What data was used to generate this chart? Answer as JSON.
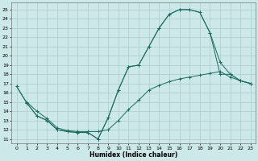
{
  "xlabel": "Humidex (Indice chaleur)",
  "bg_color": "#cce8e8",
  "grid_color": "#aacccc",
  "line_color": "#1a6b5e",
  "xlim": [
    -0.5,
    23.5
  ],
  "ylim": [
    10.5,
    25.8
  ],
  "xticks": [
    0,
    1,
    2,
    3,
    4,
    5,
    6,
    7,
    8,
    9,
    10,
    11,
    12,
    13,
    14,
    15,
    16,
    17,
    18,
    19,
    20,
    21,
    22,
    23
  ],
  "yticks": [
    11,
    12,
    13,
    14,
    15,
    16,
    17,
    18,
    19,
    20,
    21,
    22,
    23,
    24,
    25
  ],
  "c1x": [
    0,
    1,
    2,
    3,
    4,
    5,
    6,
    7,
    8,
    9,
    10,
    11,
    12,
    13,
    14,
    15,
    16,
    17,
    18,
    19,
    20,
    21,
    22,
    23
  ],
  "c1y": [
    16.7,
    14.9,
    13.5,
    13.0,
    12.0,
    11.8,
    11.7,
    11.7,
    11.0,
    13.3,
    16.3,
    18.8,
    19.0,
    21.0,
    23.0,
    24.5,
    25.0,
    25.0,
    24.7,
    22.5,
    19.3,
    18.0,
    17.3,
    17.0
  ],
  "c2x": [
    0,
    1,
    2,
    3,
    4,
    5,
    6,
    7,
    8,
    9,
    10,
    11,
    12,
    13,
    14,
    15,
    16,
    17,
    18,
    19,
    20,
    21,
    22,
    23
  ],
  "c2y": [
    16.7,
    14.9,
    13.5,
    13.0,
    12.0,
    11.8,
    11.7,
    11.7,
    11.0,
    13.3,
    16.3,
    18.8,
    19.0,
    21.0,
    23.0,
    24.5,
    25.0,
    25.0,
    24.7,
    22.5,
    18.0,
    18.0,
    17.3,
    17.0
  ],
  "c3x": [
    1,
    2,
    3,
    4,
    5,
    6,
    7,
    8,
    9,
    10,
    11,
    12,
    13,
    14,
    15,
    16,
    17,
    18,
    19,
    20,
    21,
    22,
    23
  ],
  "c3y": [
    15.0,
    14.0,
    13.2,
    12.2,
    11.9,
    11.8,
    11.8,
    11.8,
    12.0,
    13.0,
    14.2,
    15.2,
    16.3,
    16.8,
    17.2,
    17.5,
    17.7,
    17.9,
    18.1,
    18.3,
    17.7,
    17.3,
    17.0
  ]
}
